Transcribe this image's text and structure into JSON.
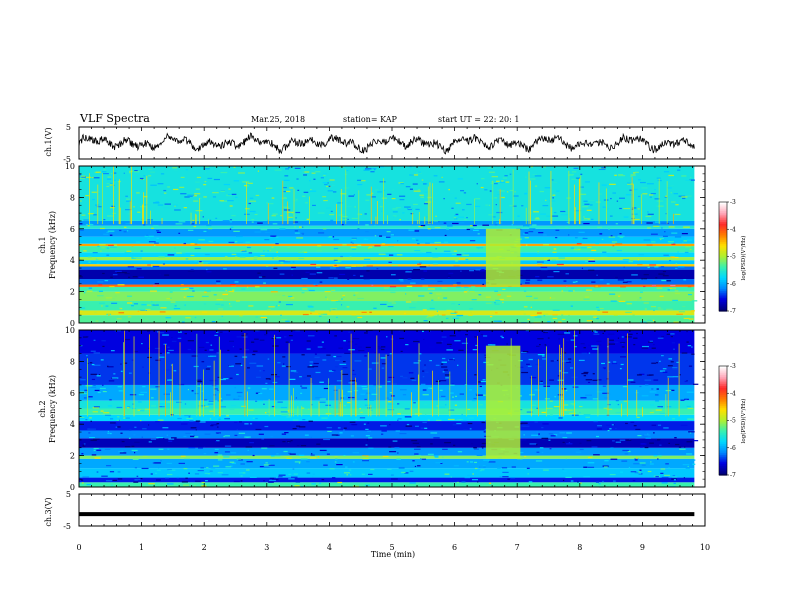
{
  "header": {
    "title": "VLF Spectra",
    "date": "Mar.25, 2018",
    "station": "station= KAP",
    "start": "start  UT  =   22: 20: 1"
  },
  "colors": {
    "colormap": [
      "#00007a",
      "#0000e0",
      "#0088ff",
      "#00d8ff",
      "#38f0b0",
      "#b0f030",
      "#ffe000",
      "#ff7a00",
      "#ff2a2a",
      "#ffa6b8",
      "#ffffff"
    ],
    "trace": "#000000"
  },
  "chart_data": [
    {
      "panel": "ch1-waveform",
      "type": "line",
      "ylabel": "ch.1(V)",
      "ylim": [
        -5,
        5
      ],
      "yticks": [
        "5",
        "-5"
      ],
      "xlim": [
        0,
        10
      ],
      "x_end": 9.83,
      "description_values": "oscillating voltage trace roughly within -3..3 V"
    },
    {
      "panel": "ch1-spectrogram",
      "type": "heatmap",
      "ylabel_top": "ch.1",
      "ylabel": "Frequency (kHz)",
      "ylim": [
        0,
        10
      ],
      "yticks": [
        "0",
        "2",
        "4",
        "6",
        "8",
        "10"
      ],
      "xlim": [
        0,
        10
      ],
      "x_end": 9.83,
      "colorbar": {
        "label": "log(PSD)(V²/Hz)",
        "range": [
          -7,
          -3
        ],
        "ticks": [
          "-3",
          "-4",
          "-5",
          "-6",
          "-7"
        ]
      },
      "bands": [
        {
          "f": [
            0.0,
            0.5
          ],
          "v": 0.42
        },
        {
          "f": [
            0.5,
            0.8
          ],
          "v": 0.55
        },
        {
          "f": [
            0.8,
            1.4
          ],
          "v": 0.4
        },
        {
          "f": [
            1.4,
            2.0
          ],
          "v": 0.46
        },
        {
          "f": [
            2.0,
            2.3
          ],
          "v": 0.4
        },
        {
          "f": [
            2.3,
            2.45
          ],
          "v": 0.72
        },
        {
          "f": [
            2.45,
            2.8
          ],
          "v": 0.18
        },
        {
          "f": [
            2.8,
            3.4
          ],
          "v": 0.05
        },
        {
          "f": [
            3.4,
            3.6
          ],
          "v": 0.18
        },
        {
          "f": [
            3.6,
            3.75
          ],
          "v": 0.62
        },
        {
          "f": [
            3.75,
            4.0
          ],
          "v": 0.28
        },
        {
          "f": [
            4.0,
            4.2
          ],
          "v": 0.48
        },
        {
          "f": [
            4.2,
            4.5
          ],
          "v": 0.3
        },
        {
          "f": [
            4.5,
            4.9
          ],
          "v": 0.4
        },
        {
          "f": [
            4.9,
            5.05
          ],
          "v": 0.66
        },
        {
          "f": [
            5.05,
            5.5
          ],
          "v": 0.28
        },
        {
          "f": [
            5.5,
            6.0
          ],
          "v": 0.22
        },
        {
          "f": [
            6.0,
            6.2
          ],
          "v": 0.36
        },
        {
          "f": [
            6.2,
            6.5
          ],
          "v": 0.22
        },
        {
          "f": [
            6.5,
            10.0
          ],
          "v": 0.34
        }
      ],
      "anomaly": {
        "t": [
          6.5,
          7.05
        ],
        "v": 0.5
      }
    },
    {
      "panel": "ch2-spectrogram",
      "type": "heatmap",
      "ylabel_top": "ch.2",
      "ylabel": "Frequency (kHz)",
      "ylim": [
        0,
        10
      ],
      "yticks": [
        "0",
        "2",
        "4",
        "6",
        "8",
        "10"
      ],
      "xlim": [
        0,
        10
      ],
      "x_end": 9.83,
      "colorbar": {
        "label": "log(PSD)(V²/Hz)",
        "range": [
          -7,
          -3
        ],
        "ticks": [
          "-3",
          "-4",
          "-5",
          "-6",
          "-7"
        ]
      },
      "bands": [
        {
          "f": [
            0.0,
            0.3
          ],
          "v": 0.4
        },
        {
          "f": [
            0.3,
            0.6
          ],
          "v": 0.12
        },
        {
          "f": [
            0.6,
            1.2
          ],
          "v": 0.28
        },
        {
          "f": [
            1.2,
            1.8
          ],
          "v": 0.24
        },
        {
          "f": [
            1.8,
            2.0
          ],
          "v": 0.46
        },
        {
          "f": [
            2.0,
            2.5
          ],
          "v": 0.22
        },
        {
          "f": [
            2.5,
            3.1
          ],
          "v": 0.06
        },
        {
          "f": [
            3.1,
            3.6
          ],
          "v": 0.2
        },
        {
          "f": [
            3.6,
            4.2
          ],
          "v": 0.12
        },
        {
          "f": [
            4.2,
            4.6
          ],
          "v": 0.3
        },
        {
          "f": [
            4.6,
            5.0
          ],
          "v": 0.4
        },
        {
          "f": [
            5.0,
            5.5
          ],
          "v": 0.34
        },
        {
          "f": [
            5.5,
            6.5
          ],
          "v": 0.24
        },
        {
          "f": [
            6.5,
            8.5
          ],
          "v": 0.14
        },
        {
          "f": [
            8.5,
            10.0
          ],
          "v": 0.1
        }
      ],
      "anomaly": {
        "t": [
          6.5,
          7.05
        ],
        "v": 0.5
      }
    },
    {
      "panel": "ch3-waveform",
      "type": "line",
      "ylabel": "ch.3(V)",
      "ylim": [
        -5,
        5
      ],
      "yticks": [
        "5",
        "-5"
      ],
      "xlim": [
        0,
        10
      ],
      "x_end": 9.83,
      "series": [
        {
          "constant": -1.3
        }
      ]
    }
  ],
  "xaxis": {
    "label": "Time (min)",
    "range": [
      0,
      10
    ],
    "ticks": [
      "0",
      "1",
      "2",
      "3",
      "4",
      "5",
      "6",
      "7",
      "8",
      "9",
      "10"
    ]
  }
}
